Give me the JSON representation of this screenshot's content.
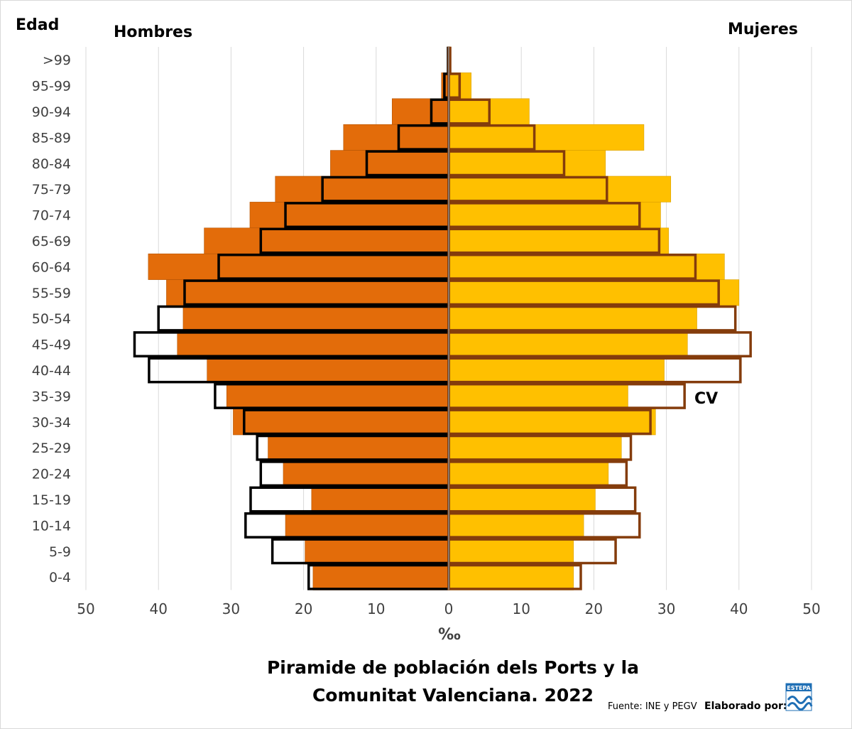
{
  "chart_data": {
    "type": "bar",
    "orientation": "horizontal",
    "title": "Piramide de población dels Ports y la Comunitat Valenciana. 2022",
    "title_lines": [
      "Piramide de población dels Ports y la",
      "Comunitat Valenciana. 2022"
    ],
    "y_axis_label": "Edad",
    "x_axis_label": "‰",
    "left_label": "Hombres",
    "right_label": "Mujeres",
    "cv_label": "CV",
    "xlim": [
      -50,
      50
    ],
    "x_ticks": [
      -50,
      -40,
      -30,
      -20,
      -10,
      0,
      10,
      20,
      30,
      40,
      50
    ],
    "x_tick_labels": [
      "50",
      "40",
      "30",
      "20",
      "10",
      "0",
      "10",
      "20",
      "30",
      "40",
      "50"
    ],
    "grid": "vertical",
    "categories": [
      ">99",
      "95-99",
      "90-94",
      "85-89",
      "80-84",
      "75-79",
      "70-74",
      "65-69",
      "60-64",
      "55-59",
      "50-54",
      "45-49",
      "40-44",
      "35-39",
      "30-34",
      "25-29",
      "20-24",
      "15-19",
      "10-14",
      "5-9",
      "0-4"
    ],
    "series": [
      {
        "name": "Hombres",
        "group": "Ports",
        "color": "#e36c0a",
        "values": [
          0.2,
          1.0,
          7.8,
          14.5,
          16.3,
          23.9,
          27.4,
          33.7,
          41.4,
          38.9,
          36.6,
          37.4,
          33.3,
          30.6,
          29.7,
          24.9,
          22.8,
          18.9,
          22.5,
          19.8,
          18.7
        ]
      },
      {
        "name": "Mujeres",
        "group": "Ports",
        "color": "#ffc000",
        "values": [
          0.3,
          3.1,
          11.1,
          26.9,
          21.6,
          30.6,
          29.2,
          30.3,
          38.0,
          40.0,
          34.2,
          32.9,
          29.7,
          24.7,
          28.5,
          23.8,
          22.0,
          20.2,
          18.6,
          17.2,
          17.2
        ]
      },
      {
        "name": "Hombres",
        "group": "CV",
        "color": "#000000",
        "values": [
          0.1,
          0.6,
          2.4,
          6.9,
          11.3,
          17.4,
          22.5,
          25.9,
          31.7,
          36.4,
          40.0,
          43.3,
          41.3,
          32.2,
          28.2,
          26.4,
          25.9,
          27.3,
          28.0,
          24.3,
          19.3
        ]
      },
      {
        "name": "Mujeres",
        "group": "CV",
        "color": "#843c0c",
        "values": [
          0.2,
          1.5,
          5.6,
          11.8,
          15.9,
          21.8,
          26.3,
          29.0,
          34.0,
          37.2,
          39.5,
          41.6,
          40.2,
          32.5,
          27.8,
          25.1,
          24.5,
          25.7,
          26.3,
          23.0,
          18.2
        ]
      }
    ]
  },
  "footer": {
    "source": "Fuente: INE y PEGV",
    "credit": "Elaborado por:",
    "logo_text": "ESTEPA"
  }
}
